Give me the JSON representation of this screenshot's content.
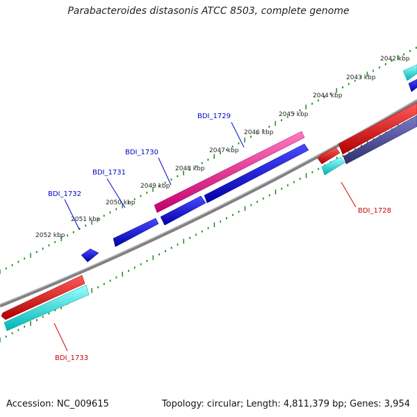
{
  "title": "Parabacteroides distasonis ATCC 8503, complete genome",
  "footer": {
    "accession": "Accession: NC_009615",
    "topology": "Topology: circular; Length: 4,811,379 bp; Genes: 3,954"
  },
  "colors": {
    "backbone": "#808080",
    "ticks": "#1a8a1a",
    "forward_red": "#ff0000",
    "forward_cyan": "#00e5e5",
    "reverse_blue": "#0000e6",
    "magenta": "#ff2d9a",
    "slate": "#4a4a9a",
    "label_blue": "#0000cc",
    "label_red": "#cc0000"
  },
  "kbp_labels": [
    "2042 kbp",
    "2043 kbp",
    "2044 kbp",
    "2045 kbp",
    "2046 kbp",
    "2047 kbp",
    "2048 kbp",
    "2049 kbp",
    "2050 kbp",
    "2051 kbp",
    "2052 kbp"
  ],
  "genes": [
    {
      "name": "BDI_1728",
      "color": "label_red"
    },
    {
      "name": "BDI_1729",
      "color": "label_blue"
    },
    {
      "name": "BDI_1730",
      "color": "label_blue"
    },
    {
      "name": "BDI_1731",
      "color": "label_blue"
    },
    {
      "name": "BDI_1732",
      "color": "label_blue"
    },
    {
      "name": "BDI_1733",
      "color": "label_red"
    }
  ]
}
